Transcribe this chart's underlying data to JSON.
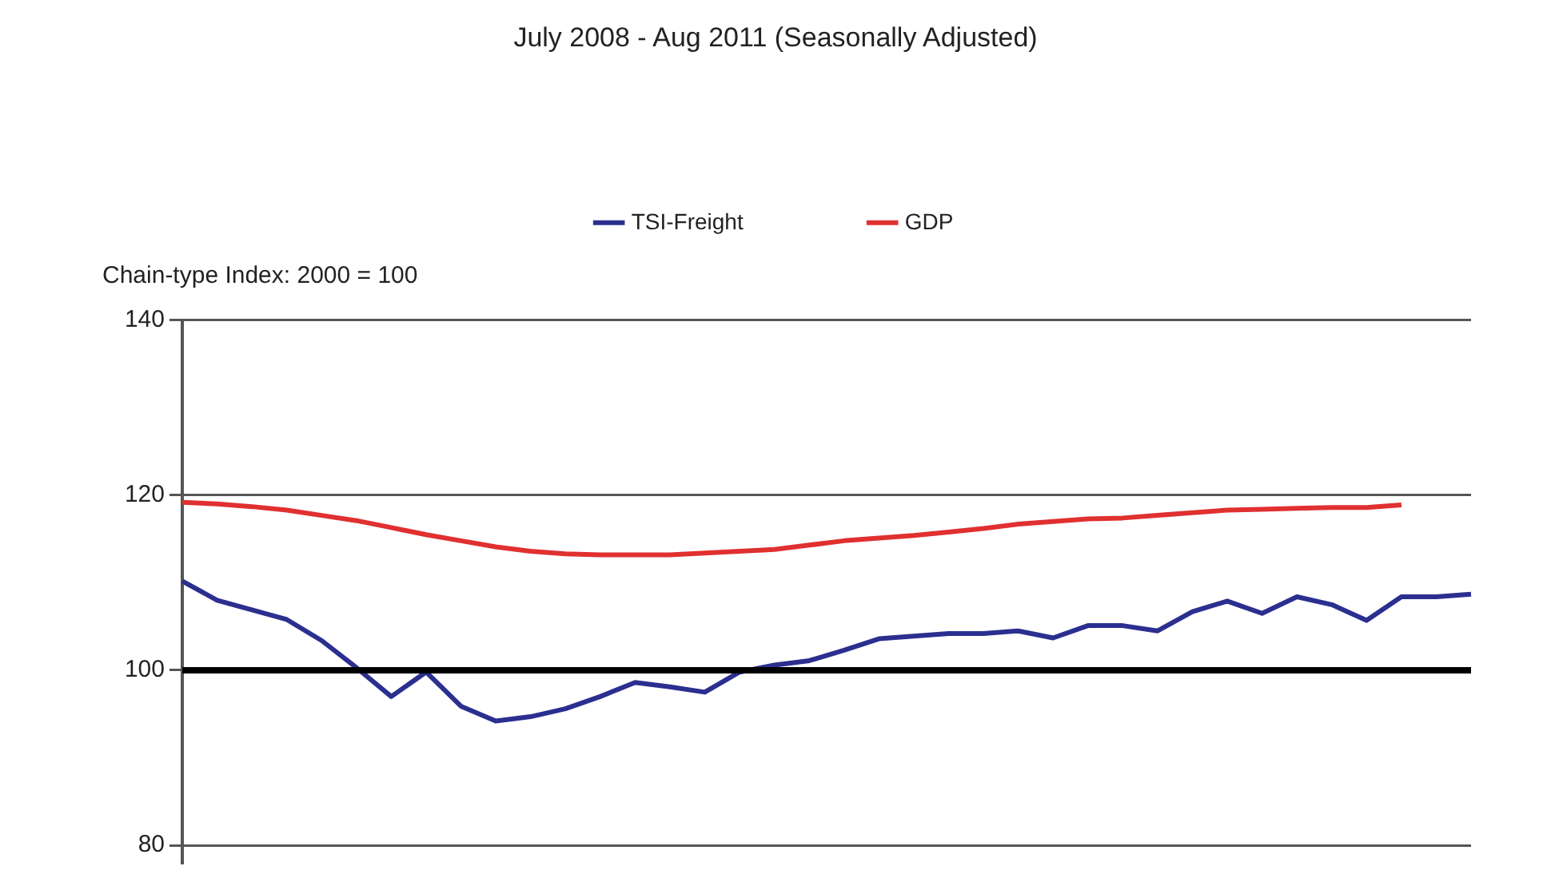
{
  "chart_data": {
    "type": "line",
    "title": "July 2008 - Aug 2011 (Seasonally Adjusted)",
    "categories": [
      null,
      null,
      null,
      null,
      null,
      null,
      null,
      null,
      null,
      null,
      null,
      null,
      null,
      null,
      null,
      null,
      null,
      null,
      null,
      null,
      null,
      null,
      null,
      null,
      null,
      null,
      null,
      null,
      null,
      null,
      null,
      null,
      null,
      null,
      null,
      null,
      null,
      null
    ],
    "series": [
      {
        "name": "TSI-Freight",
        "color": "#2b2f8f",
        "values": [
          110.2,
          108,
          106.9,
          105.8,
          103.4,
          100.3,
          97,
          99.8,
          95.9,
          94.2,
          94.7,
          95.6,
          97,
          98.6,
          98.1,
          97.5,
          99.8,
          100.6,
          101.1,
          102.3,
          103.6,
          103.9,
          104.2,
          104.2,
          104.5,
          103.7,
          105.1,
          105.1,
          104.5,
          106.7,
          107.9,
          106.5,
          108.4,
          107.5,
          105.7,
          108.4,
          108.4,
          108.7
        ]
      },
      {
        "name": "GDP",
        "color": "#e03030",
        "values": [
          119.2,
          119,
          118.7,
          118.3,
          117.7,
          117.1,
          116.3,
          115.5,
          114.8,
          114.1,
          113.6,
          113.3,
          113.2,
          113.2,
          113.2,
          113.4,
          113.6,
          113.8,
          114.3,
          114.8,
          115.1,
          115.4,
          115.8,
          116.2,
          116.7,
          117,
          117.3,
          117.4,
          117.7,
          118,
          118.3,
          118.4,
          118.5,
          118.6,
          118.6,
          118.9,
          null,
          null
        ]
      }
    ],
    "ylim": [
      78,
      140
    ],
    "yticks": [
      80,
      100,
      120,
      140
    ],
    "ref_lines": [
      {
        "axis": "y",
        "value": 100,
        "color": "#000000"
      }
    ],
    "annotations": [
      "Chain-type Index: 2000 = 100"
    ],
    "grid": "y",
    "legend": "top",
    "marker": "none",
    "line_style": "solid",
    "tick_labels": "y"
  }
}
